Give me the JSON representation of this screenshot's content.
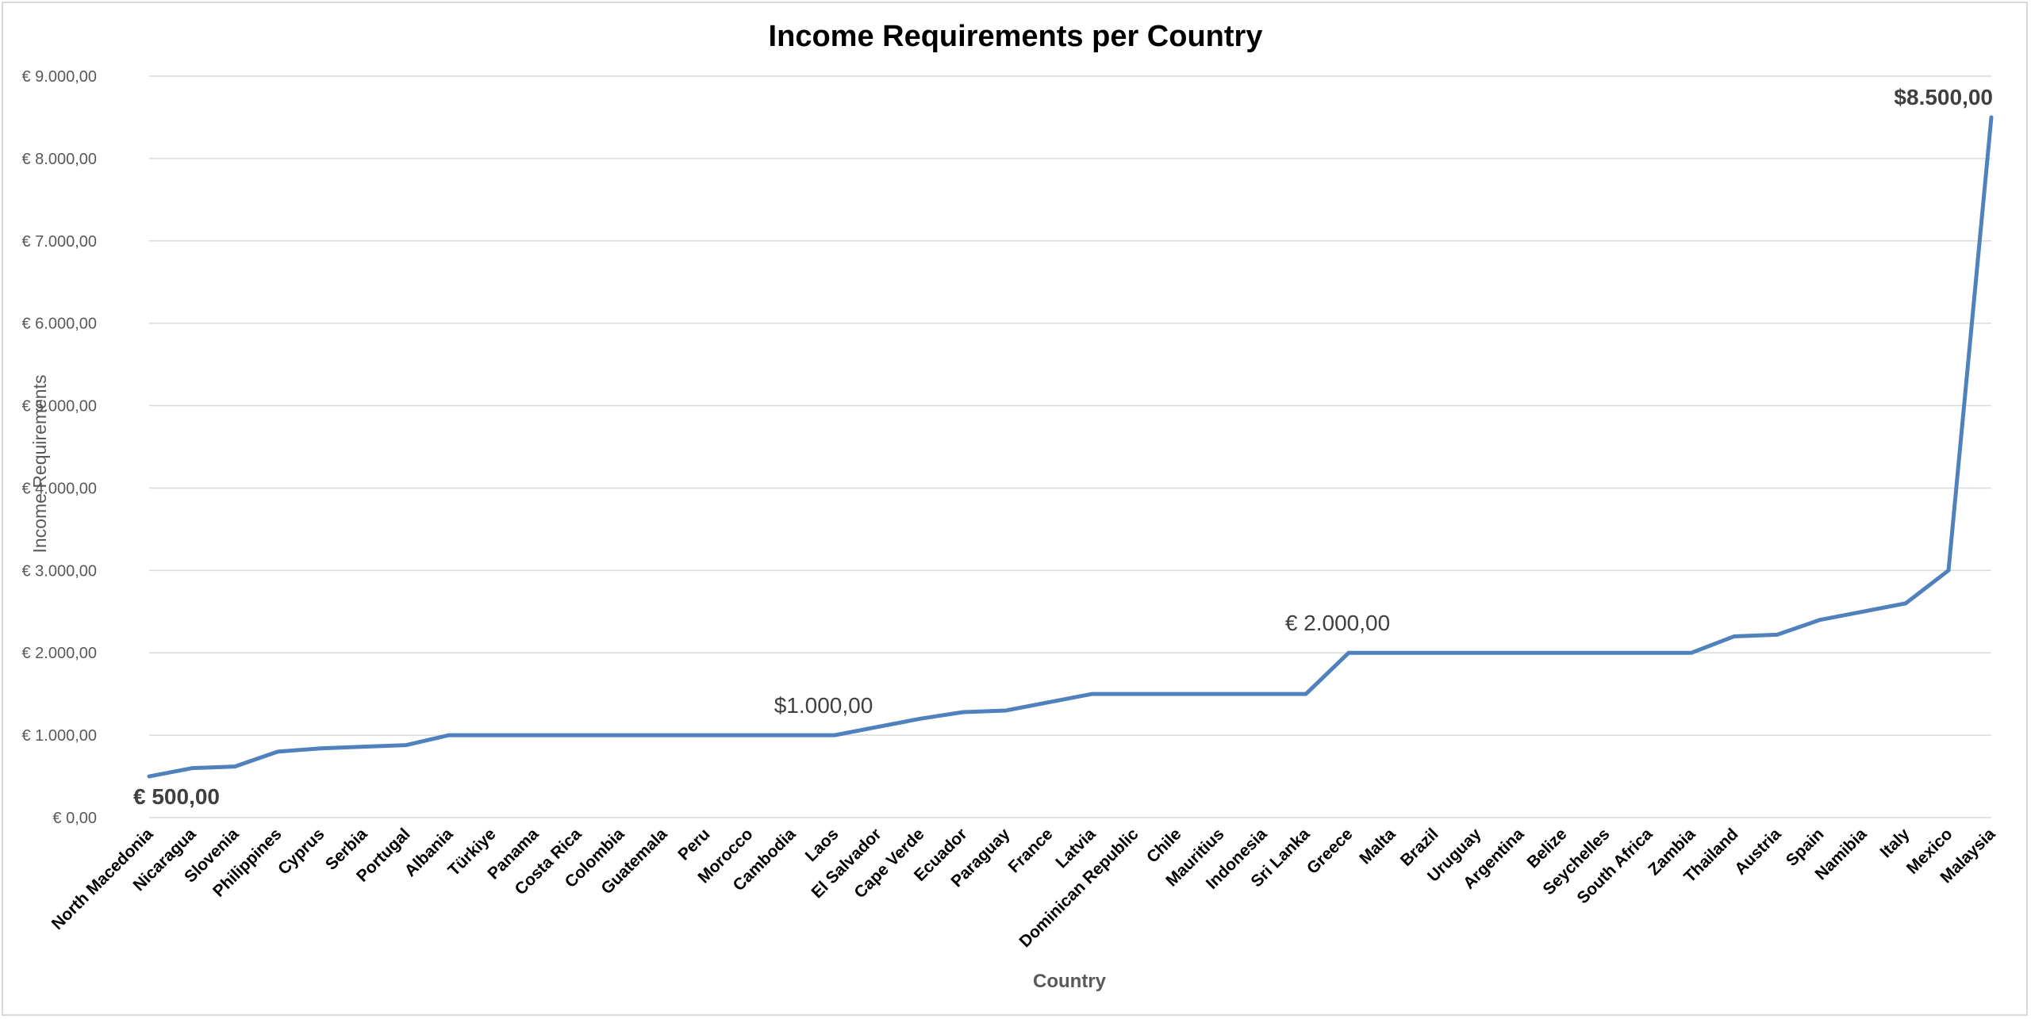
{
  "chart_data": {
    "type": "line",
    "title": "Income Requirements per Country",
    "xlabel": "Country",
    "ylabel": "Income Requirements",
    "ylim": [
      0,
      9000
    ],
    "ytick_step": 1000,
    "ytick_labels": [
      "€ 0,00",
      "€ 1.000,00",
      "€ 2.000,00",
      "€ 3.000,00",
      "€ 4.000,00",
      "€ 5.000,00",
      "€ 6.000,00",
      "€ 7.000,00",
      "€ 8.000,00",
      "€ 9.000,00"
    ],
    "grid": true,
    "line_color": "#4f81bd",
    "categories": [
      "North Macedonia",
      "Nicaragua",
      "Slovenia",
      "Philippines",
      "Cyprus",
      "Serbia",
      "Portugal",
      "Albania",
      "Türkiye",
      "Panama",
      "Costa Rica",
      "Colombia",
      "Guatemala",
      "Peru",
      "Morocco",
      "Cambodia",
      "Laos",
      "El Salvador",
      "Cape Verde",
      "Ecuador",
      "Paraguay",
      "France",
      "Latvia",
      "Dominican Republic",
      "Chile",
      "Mauritius",
      "Indonesia",
      "Sri Lanka",
      "Greece",
      "Malta",
      "Brazil",
      "Uruguay",
      "Argentina",
      "Belize",
      "Seychelles",
      "South Africa",
      "Zambia",
      "Thailand",
      "Austria",
      "Spain",
      "Namibia",
      "Italy",
      "Mexico",
      "Malaysia"
    ],
    "series": [
      {
        "name": "Income Requirements",
        "values": [
          500,
          600,
          620,
          800,
          840,
          860,
          880,
          1000,
          1000,
          1000,
          1000,
          1000,
          1000,
          1000,
          1000,
          1000,
          1000,
          1100,
          1200,
          1280,
          1300,
          1400,
          1500,
          1500,
          1500,
          1500,
          1500,
          1500,
          2000,
          2000,
          2000,
          2000,
          2000,
          2000,
          2000,
          2000,
          2000,
          2200,
          2220,
          2400,
          2500,
          2600,
          3000,
          8500
        ]
      }
    ],
    "annotations": [
      {
        "category_index": 0,
        "value": 500,
        "text": "€ 500,00",
        "bold": true
      },
      {
        "category_index": 16,
        "value": 1000,
        "text": "$1.000,00",
        "bold": false
      },
      {
        "category_index": 28,
        "value": 2000,
        "text": "€ 2.000,00",
        "bold": false
      },
      {
        "category_index": 43,
        "value": 8500,
        "text": "$8.500,00",
        "bold": true
      }
    ]
  }
}
